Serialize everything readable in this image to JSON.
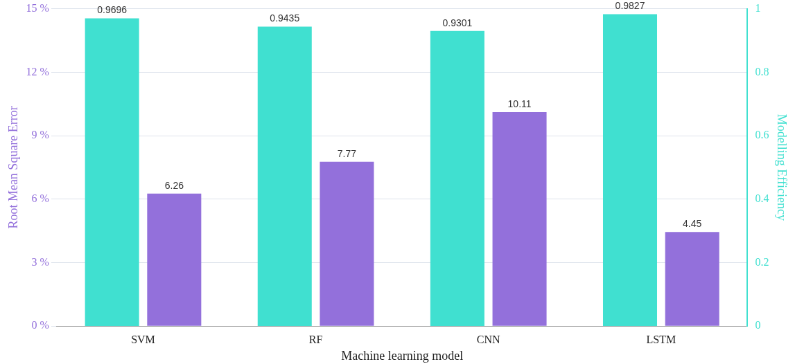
{
  "chart_data": {
    "type": "bar",
    "xlabel": "Machine learning model",
    "ylabel": "Root Mean Square Error",
    "y2label": "Modelling Efficiency",
    "categories": [
      "SVM",
      "RF",
      "CNN",
      "LSTM"
    ],
    "series": [
      {
        "color": "#40e0d0",
        "values": [
          0.9696,
          0.9435,
          0.9301,
          0.9827
        ],
        "axis": "y2"
      },
      {
        "color": "#9370db",
        "values": [
          6.26,
          7.77,
          10.11,
          4.45
        ]
      }
    ],
    "ylim": [
      0,
      15
    ],
    "yticks": [
      {
        "value": 0,
        "label": "0 %"
      },
      {
        "value": 3,
        "label": "3 %"
      },
      {
        "value": 6,
        "label": "6 %"
      },
      {
        "value": 9,
        "label": "9 %"
      },
      {
        "value": 12,
        "label": "12 %"
      },
      {
        "value": 15,
        "label": "15 %"
      }
    ],
    "y2lim": [
      0,
      1
    ],
    "y2ticks": [
      0,
      0.2,
      0.4,
      0.6,
      0.8,
      1
    ],
    "grid": "y",
    "legend": false,
    "data_labels": true
  }
}
